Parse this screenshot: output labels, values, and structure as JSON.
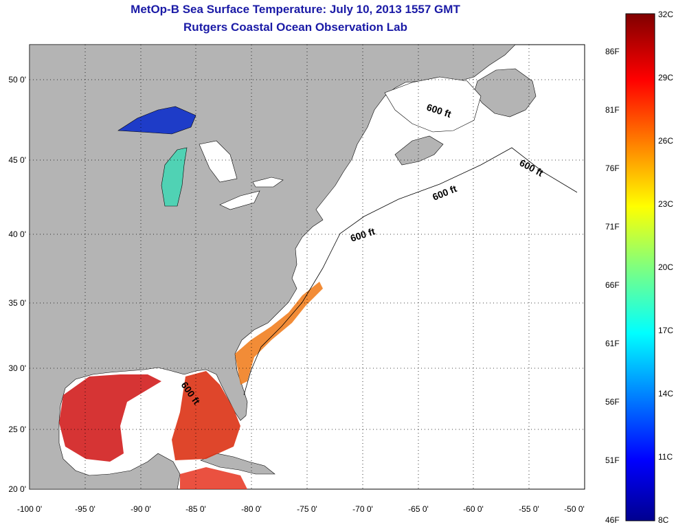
{
  "header": {
    "title": "MetOp-B Sea Surface Temperature:  July 10, 2013 1557 GMT",
    "subtitle": "Rutgers Coastal Ocean Observation Lab"
  },
  "map": {
    "lon_ticks": [
      "-100 0'",
      "-95 0'",
      "-90 0'",
      "-85 0'",
      "-80 0'",
      "-75 0'",
      "-70 0'",
      "-65 0'",
      "-60 0'",
      "-55 0'",
      "-50 0'"
    ],
    "lat_ticks": [
      "50 0'",
      "45 0'",
      "40 0'",
      "35 0'",
      "30 0'",
      "25 0'",
      "20 0'"
    ],
    "isobath_labels": [
      "600 ft",
      "600 ft",
      "600 ft",
      "600 ft",
      "600 ft"
    ],
    "colors": {
      "land": "#b4b4b4",
      "ocean": "#ffffff",
      "title": "#1a1aa6"
    }
  },
  "colorbar": {
    "fahrenheit": [
      "86F",
      "81F",
      "76F",
      "71F",
      "66F",
      "61F",
      "56F",
      "51F",
      "46F"
    ],
    "celsius": [
      "32C",
      "29C",
      "26C",
      "23C",
      "20C",
      "17C",
      "14C",
      "11C",
      "8C"
    ]
  }
}
